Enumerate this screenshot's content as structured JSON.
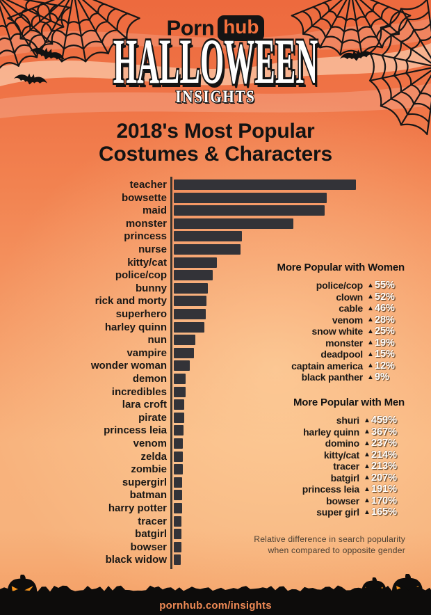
{
  "header": {
    "logo": {
      "part1": "Porn",
      "part2": "hub"
    },
    "title": "HALLOWEEN",
    "subtitle": "INSIGHTS"
  },
  "page_title": {
    "line1": "2018's Most Popular",
    "line2": "Costumes & Characters"
  },
  "chart_data": {
    "type": "bar",
    "orientation": "horizontal",
    "title": "2018's Most Popular Costumes & Characters",
    "xlabel": "",
    "ylabel": "",
    "units": "relative search volume (estimated, top bar = 100)",
    "grid": false,
    "xlim": [
      0,
      100
    ],
    "bar_color": "#333338",
    "categories": [
      "teacher",
      "bowsette",
      "maid",
      "monster",
      "princess",
      "nurse",
      "kitty/cat",
      "police/cop",
      "bunny",
      "rick and morty",
      "superhero",
      "harley quinn",
      "nun",
      "vampire",
      "wonder woman",
      "demon",
      "incredibles",
      "lara croft",
      "pirate",
      "princess leia",
      "venom",
      "zelda",
      "zombie",
      "supergirl",
      "batman",
      "harry potter",
      "tracer",
      "batgirl",
      "bowser",
      "black widow"
    ],
    "values": [
      100,
      84,
      83,
      65.5,
      37.5,
      36.8,
      23.5,
      21.5,
      18.7,
      18,
      17.5,
      16.8,
      11.8,
      11,
      8.8,
      6.5,
      6.4,
      5.9,
      5.6,
      5.3,
      5.1,
      4.9,
      4.8,
      4.6,
      4.5,
      4.4,
      4.3,
      4.2,
      4.1,
      4.0
    ]
  },
  "panels": {
    "women": {
      "heading": "More Popular with Women",
      "items": [
        {
          "name": "police/cop",
          "change": "55%"
        },
        {
          "name": "clown",
          "change": "52%"
        },
        {
          "name": "cable",
          "change": "46%"
        },
        {
          "name": "venom",
          "change": "28%"
        },
        {
          "name": "snow white",
          "change": "25%"
        },
        {
          "name": "monster",
          "change": "19%"
        },
        {
          "name": "deadpool",
          "change": "15%"
        },
        {
          "name": "captain america",
          "change": "12%"
        },
        {
          "name": "black panther",
          "change": "9%"
        }
      ]
    },
    "men": {
      "heading": "More Popular with Men",
      "items": [
        {
          "name": "shuri",
          "change": "459%"
        },
        {
          "name": "harley quinn",
          "change": "367%"
        },
        {
          "name": "domino",
          "change": "237%"
        },
        {
          "name": "kitty/cat",
          "change": "214%"
        },
        {
          "name": "tracer",
          "change": "213%"
        },
        {
          "name": "batgirl",
          "change": "207%"
        },
        {
          "name": "princess leia",
          "change": "191%"
        },
        {
          "name": "bowser",
          "change": "170%"
        },
        {
          "name": "super girl",
          "change": "165%"
        }
      ]
    }
  },
  "icons": {
    "up_triangle": "▲"
  },
  "footnote": {
    "line1": "Relative difference in search popularity",
    "line2": "when compared to opposite gender"
  },
  "footer": {
    "url": "pornhub.com/insights"
  },
  "colors": {
    "background_top": "#ed6a3e",
    "background_light": "#fbc592",
    "bar": "#333338",
    "brand_orange": "#f2713d",
    "percent_text": "#ffffff",
    "pumpkin_face": "#f7941d",
    "silhouette_black": "#0d0c0b",
    "footer_url_text": "#ef8a55"
  }
}
